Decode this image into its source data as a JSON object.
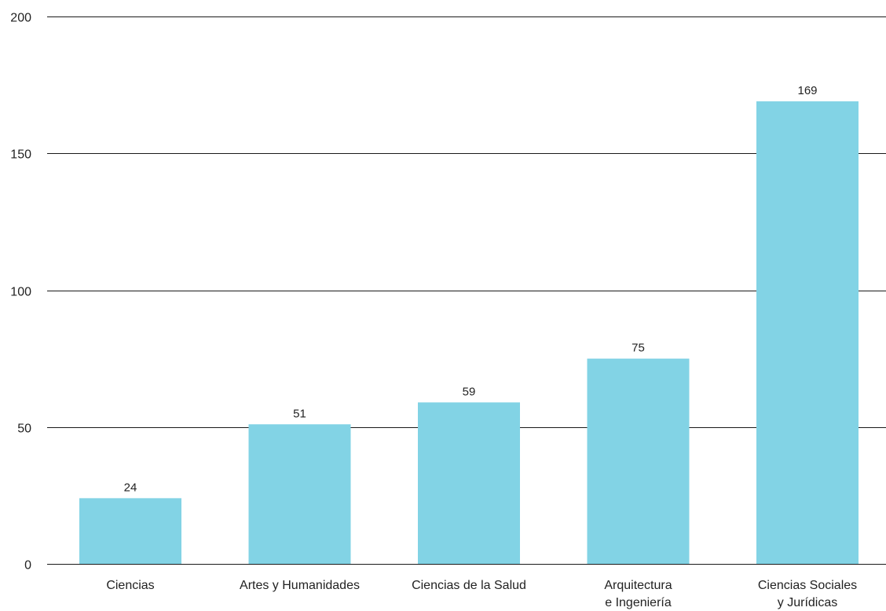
{
  "chart_data": {
    "type": "bar",
    "title": "",
    "xlabel": "",
    "ylabel": "",
    "categories": [
      [
        "Ciencias"
      ],
      [
        "Artes y Humanidades"
      ],
      [
        "Ciencias de la Salud"
      ],
      [
        "Arquitectura",
        "e Ingeniería"
      ],
      [
        "Ciencias Sociales",
        "y Jurídicas"
      ]
    ],
    "values": [
      24,
      51,
      59,
      75,
      169
    ],
    "ylim": [
      0,
      200
    ],
    "yticks": [
      0,
      50,
      100,
      150,
      200
    ],
    "grid": true,
    "legend": "none",
    "bar_color": "#82d3e5",
    "gridline_color": "#1a1a1a"
  }
}
